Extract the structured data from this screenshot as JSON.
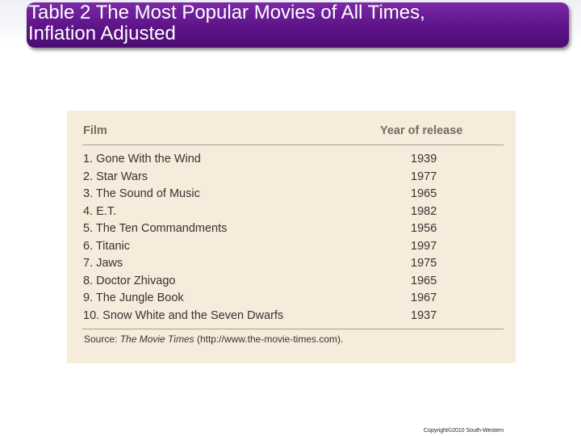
{
  "slide": {
    "title": "Table 2 The Most Popular Movies of All Times,\nInflation Adjusted",
    "copyright": "Copyright©2010  South-Western"
  },
  "table": {
    "headers": {
      "film": "Film",
      "year": "Year of release"
    },
    "rows": [
      {
        "film": "1. Gone With the Wind",
        "year": "1939"
      },
      {
        "film": "2. Star Wars",
        "year": "1977"
      },
      {
        "film": "3. The Sound of Music",
        "year": "1965"
      },
      {
        "film": "4. E.T.",
        "year": "1982"
      },
      {
        "film": "5. The Ten Commandments",
        "year": "1956"
      },
      {
        "film": "6. Titanic",
        "year": "1997"
      },
      {
        "film": "7. Jaws",
        "year": "1975"
      },
      {
        "film": "8. Doctor Zhivago",
        "year": "1965"
      },
      {
        "film": "9. The Jungle Book",
        "year": "1967"
      },
      {
        "film": "10. Snow White and the Seven Dwarfs",
        "year": "1937"
      }
    ],
    "source": {
      "prefix": "Source: ",
      "publication": "The Movie Times",
      "suffix": " (http://www.the-movie-times.com)."
    }
  },
  "colors": {
    "title_banner": "#5d1388",
    "title_text": "#ffffff",
    "table_background": "#f6ecdc",
    "header_text": "#7a6a60",
    "body_text": "#3a3330"
  }
}
